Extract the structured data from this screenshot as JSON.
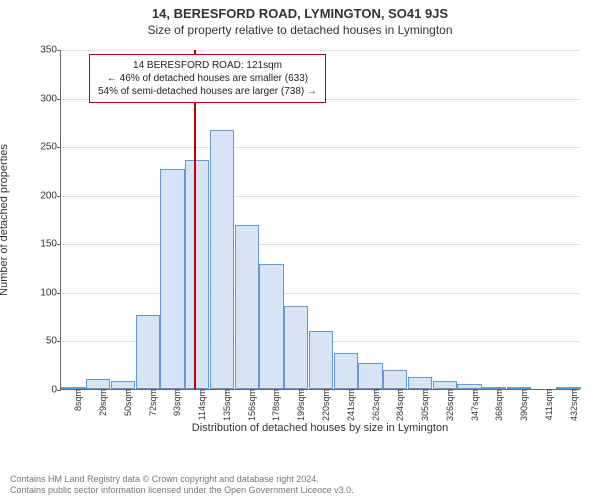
{
  "title_main": "14, BERESFORD ROAD, LYMINGTON, SO41 9JS",
  "title_sub": "Size of property relative to detached houses in Lymington",
  "ylabel": "Number of detached properties",
  "xlabel": "Distribution of detached houses by size in Lymington",
  "chart": {
    "type": "histogram",
    "ylim": [
      0,
      350
    ],
    "ytick_step": 50,
    "bar_fill": "#d6e4f5",
    "bar_border": "#6798d0",
    "grid_color": "#e0e0e0",
    "background": "#ffffff",
    "marker_color": "#c00000",
    "marker_x_value": 121,
    "x_start": 8,
    "x_step": 21,
    "categories": [
      "8sqm",
      "29sqm",
      "50sqm",
      "72sqm",
      "93sqm",
      "114sqm",
      "135sqm",
      "156sqm",
      "178sqm",
      "199sqm",
      "220sqm",
      "241sqm",
      "262sqm",
      "284sqm",
      "305sqm",
      "326sqm",
      "347sqm",
      "368sqm",
      "390sqm",
      "411sqm",
      "432sqm"
    ],
    "values": [
      1,
      10,
      8,
      76,
      227,
      236,
      267,
      169,
      129,
      85,
      60,
      37,
      27,
      20,
      12,
      8,
      5,
      2,
      1,
      0,
      1
    ]
  },
  "info_box": {
    "line1": "14 BERESFORD ROAD: 121sqm",
    "line2": "← 46% of detached houses are smaller (633)",
    "line3": "54% of semi-detached houses are larger (738) →"
  },
  "footer": {
    "line1": "Contains HM Land Registry data © Crown copyright and database right 2024.",
    "line2": "Contains public sector information licensed under the Open Government Licence v3.0."
  }
}
